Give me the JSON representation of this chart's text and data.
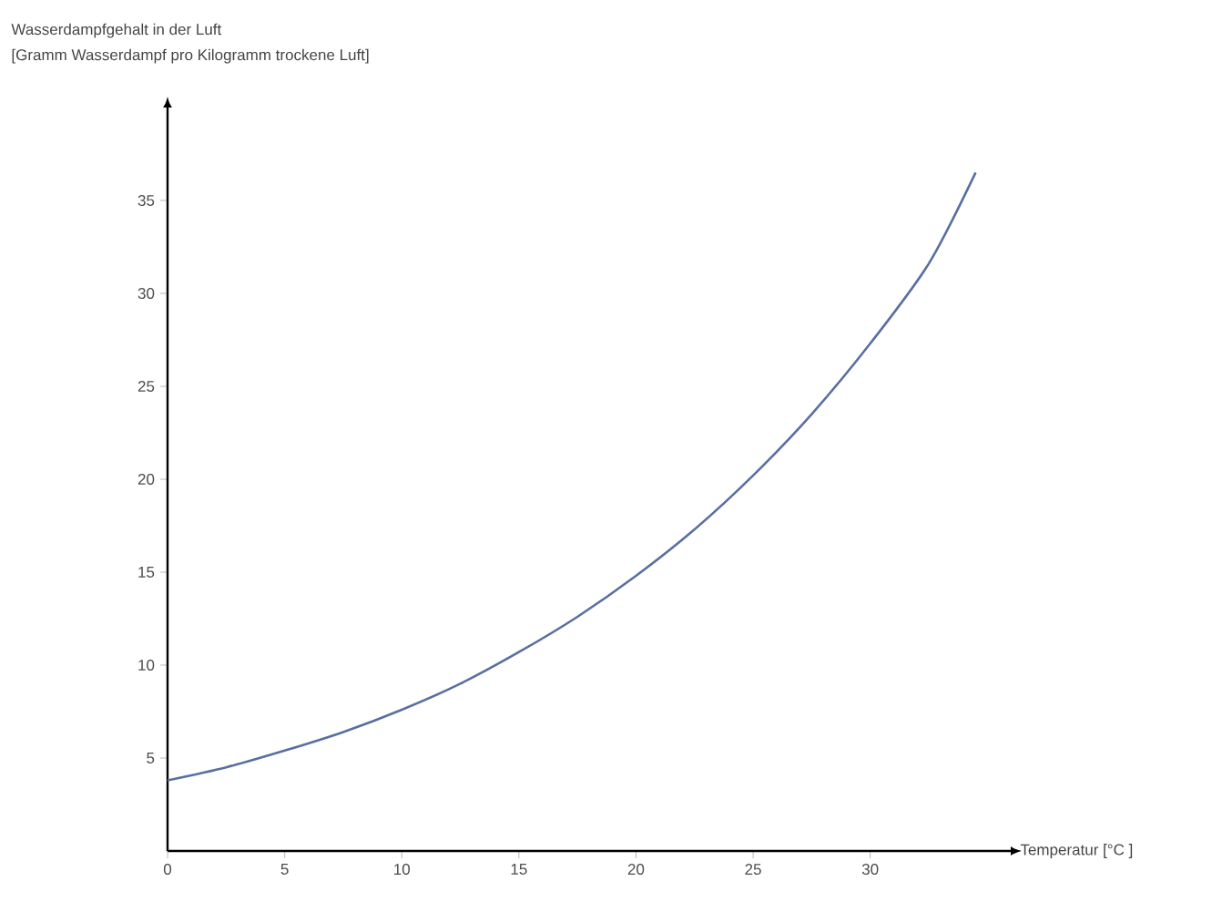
{
  "chart_data": {
    "type": "line",
    "ylabel": "Wasserdampfgehalt in der Luft",
    "annotations": [
      "[Gramm Wasserdampf pro Kilogramm trockene Luft]"
    ],
    "xlabel": "Temperatur [°C ]",
    "x": [
      0,
      2.5,
      5,
      7.5,
      10,
      12.5,
      15,
      17.5,
      20,
      22.5,
      25,
      27.5,
      30,
      32.5,
      34.5
    ],
    "series": [
      {
        "color": "#5a6fa0",
        "values": [
          3.8,
          4.5,
          5.4,
          6.4,
          7.6,
          9.0,
          10.7,
          12.6,
          14.8,
          17.3,
          20.2,
          23.5,
          27.3,
          31.6,
          36.5
        ]
      }
    ],
    "xlim": [
      0,
      36
    ],
    "ylim": [
      0,
      40
    ],
    "xticks": [
      0,
      5,
      10,
      15,
      20,
      25,
      30
    ],
    "yticks": [
      5,
      10,
      15,
      20,
      25,
      30,
      35
    ],
    "grid": false,
    "marker": "none",
    "line_style": "solid"
  }
}
